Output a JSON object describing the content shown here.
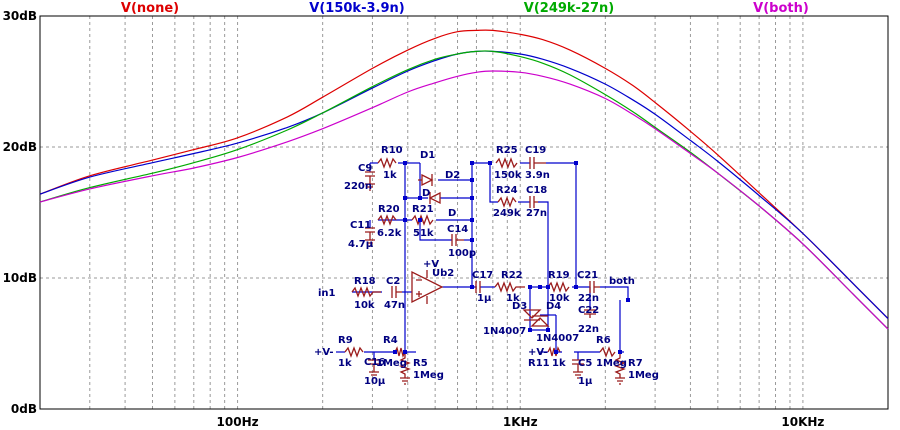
{
  "chart_data": {
    "type": "line",
    "x_scale": "log",
    "xlim": [
      20,
      20000
    ],
    "ylim": [
      0,
      30
    ],
    "x_ticks": [
      {
        "value": 100,
        "label": "100Hz"
      },
      {
        "value": 1000,
        "label": "1KHz"
      },
      {
        "value": 10000,
        "label": "10KHz"
      }
    ],
    "y_ticks": [
      {
        "value": 0,
        "label": "0dB"
      },
      {
        "value": 10,
        "label": "10dB"
      },
      {
        "value": 20,
        "label": "20dB"
      },
      {
        "value": 30,
        "label": "30dB"
      }
    ],
    "grid": true,
    "series": [
      {
        "name": "V(none)",
        "color": "#dd0000",
        "x": [
          20,
          30,
          50,
          70,
          100,
          150,
          200,
          300,
          400,
          500,
          600,
          700,
          800,
          1000,
          1200,
          1500,
          2000,
          2500,
          3000,
          4000,
          5000,
          7000,
          10000,
          15000,
          20000
        ],
        "y": [
          16.4,
          17.8,
          19.0,
          19.8,
          20.7,
          22.3,
          23.8,
          26.0,
          27.4,
          28.3,
          28.8,
          28.9,
          28.9,
          28.6,
          28.2,
          27.4,
          26.0,
          24.7,
          23.4,
          21.2,
          19.4,
          16.5,
          13.4,
          9.6,
          6.9
        ]
      },
      {
        "name": "V(150k-3.9n)",
        "color": "#0000cc",
        "x": [
          20,
          30,
          50,
          70,
          100,
          150,
          200,
          300,
          400,
          500,
          600,
          700,
          800,
          1000,
          1200,
          1500,
          2000,
          2500,
          3000,
          4000,
          5000,
          7000,
          10000,
          15000,
          20000
        ],
        "y": [
          16.4,
          17.7,
          18.8,
          19.5,
          20.3,
          21.5,
          22.6,
          24.5,
          25.8,
          26.6,
          27.1,
          27.3,
          27.3,
          27.1,
          26.7,
          26.0,
          24.8,
          23.6,
          22.5,
          20.5,
          18.9,
          16.3,
          13.4,
          9.6,
          6.9
        ]
      },
      {
        "name": "V(249k-27n)",
        "color": "#00aa00",
        "x": [
          20,
          30,
          50,
          70,
          100,
          150,
          200,
          300,
          400,
          500,
          600,
          700,
          800,
          1000,
          1200,
          1500,
          2000,
          2500,
          3000,
          4000,
          5000,
          7000,
          10000,
          15000,
          20000
        ],
        "y": [
          15.8,
          16.9,
          18.0,
          18.8,
          19.8,
          21.3,
          22.6,
          24.6,
          25.9,
          26.7,
          27.1,
          27.3,
          27.3,
          26.9,
          26.4,
          25.5,
          24.0,
          22.7,
          21.5,
          19.6,
          18.0,
          15.5,
          12.6,
          8.8,
          6.1
        ]
      },
      {
        "name": "V(both)",
        "color": "#cc00cc",
        "x": [
          20,
          30,
          50,
          70,
          100,
          150,
          200,
          300,
          400,
          500,
          600,
          700,
          800,
          1000,
          1200,
          1500,
          2000,
          2500,
          3000,
          4000,
          5000,
          7000,
          10000,
          15000,
          20000
        ],
        "y": [
          15.8,
          16.8,
          17.8,
          18.4,
          19.2,
          20.4,
          21.4,
          23.0,
          24.2,
          24.9,
          25.4,
          25.7,
          25.8,
          25.7,
          25.4,
          24.8,
          23.7,
          22.5,
          21.4,
          19.5,
          18.0,
          15.5,
          12.6,
          8.8,
          6.1
        ]
      }
    ]
  },
  "schematic": {
    "components": {
      "c9": {
        "ref": "C9",
        "value": "220n"
      },
      "r10": {
        "ref": "R10",
        "value": "1k"
      },
      "d1": {
        "ref": "D1",
        "value": "D"
      },
      "d2": {
        "ref": "D2",
        "value": "D"
      },
      "r25": {
        "ref": "R25",
        "value": "150k"
      },
      "c19": {
        "ref": "C19",
        "value": "3.9n"
      },
      "r24": {
        "ref": "R24",
        "value": "249k"
      },
      "c18": {
        "ref": "C18",
        "value": "27n"
      },
      "r20": {
        "ref": "R20",
        "value": "6.2k"
      },
      "r21": {
        "ref": "R21",
        "value": "51k"
      },
      "c11": {
        "ref": "C11",
        "value": "4.7µ"
      },
      "c14": {
        "ref": "C14",
        "value": "100p"
      },
      "r18": {
        "ref": "R18",
        "value": "10k"
      },
      "c2": {
        "ref": "C2",
        "value": "47n"
      },
      "ub2": {
        "ref": "Ub2",
        "value": ""
      },
      "c17": {
        "ref": "C17",
        "value": "1µ"
      },
      "r22": {
        "ref": "R22",
        "value": "1k"
      },
      "r19": {
        "ref": "R19",
        "value": "10k"
      },
      "c21": {
        "ref": "C21",
        "value": "22n"
      },
      "c22": {
        "ref": "C22",
        "value": "22n"
      },
      "d3": {
        "ref": "D3",
        "value": "1N4007"
      },
      "d4": {
        "ref": "D4",
        "value": "1N4007"
      },
      "r9": {
        "ref": "R9",
        "value": "1k"
      },
      "c16": {
        "ref": "C16",
        "value": "10µ"
      },
      "r4": {
        "ref": "R4",
        "value": "1Meg"
      },
      "r5": {
        "ref": "R5",
        "value": "1Meg"
      },
      "r11": {
        "ref": "R11",
        "value": "1k"
      },
      "c5": {
        "ref": "C5",
        "value": "1µ"
      },
      "r6": {
        "ref": "R6",
        "value": "1Meg"
      },
      "r7": {
        "ref": "R7",
        "value": "1Meg"
      }
    },
    "nets": {
      "in1": "in1",
      "both": "both",
      "vminus_left": "+V-",
      "vminus_right": "+V-",
      "vplus_opamp": "+V"
    }
  }
}
